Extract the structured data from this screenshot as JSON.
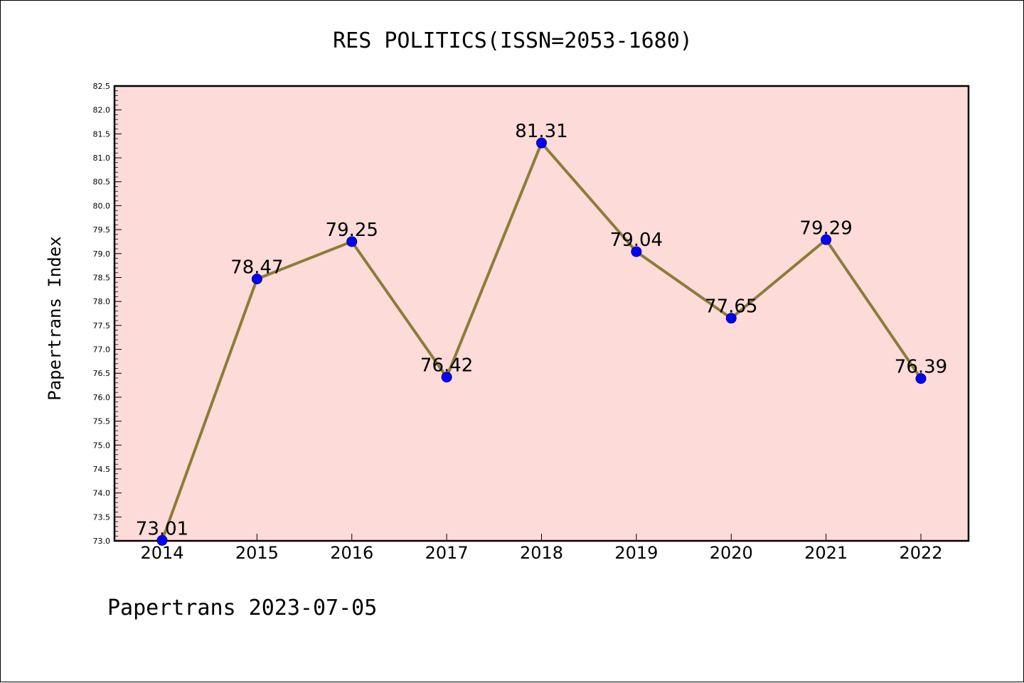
{
  "chart_data": {
    "type": "line",
    "title": "RES POLITICS(ISSN=2053-1680)",
    "ylabel": "Papertrans Index",
    "xlabel": "",
    "footer": "Papertrans 2023-07-05",
    "x": [
      "2014",
      "2015",
      "2016",
      "2017",
      "2018",
      "2019",
      "2020",
      "2021",
      "2022"
    ],
    "series": [
      {
        "values": [
          73.01,
          78.47,
          79.25,
          76.42,
          81.31,
          79.04,
          77.65,
          79.29,
          76.39
        ],
        "labels": [
          "73.01",
          "78.47",
          "79.25",
          "76.42",
          "81.31",
          "79.04",
          "77.65",
          "79.29",
          "76.39"
        ]
      }
    ],
    "ylim": [
      73.0,
      82.5
    ],
    "yticks": [
      "73.0",
      "73.5",
      "74.0",
      "74.5",
      "75.0",
      "75.5",
      "76.0",
      "76.5",
      "77.0",
      "77.5",
      "78.0",
      "78.5",
      "79.0",
      "79.5",
      "80.0",
      "80.5",
      "81.0",
      "81.5",
      "82.0",
      "82.5"
    ],
    "grid": false,
    "colors": {
      "plot_background": "#fddbd8",
      "line": "#8b7d3a",
      "marker": "#0000ff",
      "marker_edge": "#000080"
    }
  }
}
